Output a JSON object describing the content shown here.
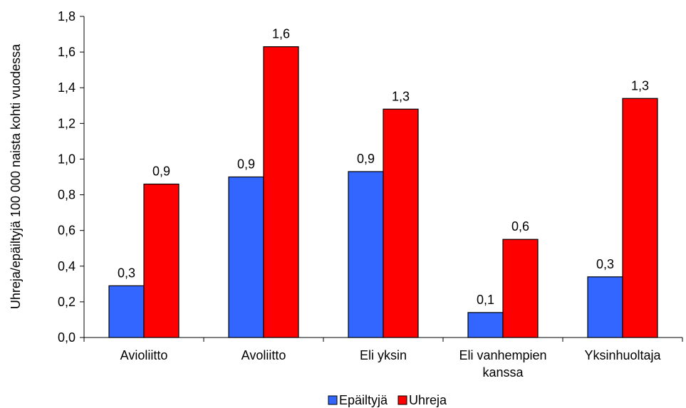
{
  "chart_data": {
    "type": "bar",
    "title": "",
    "xlabel": "",
    "ylabel": "Uhreja/epäiltyjä 100 000 naista kohti vuodessa",
    "ylim": [
      0,
      1.8
    ],
    "ytick_step": 0.2,
    "ytick_labels": [
      "0,0",
      "0,2",
      "0,4",
      "0,6",
      "0,8",
      "1,0",
      "1,2",
      "1,4",
      "1,6",
      "1,8"
    ],
    "grid": false,
    "legend_position": "bottom",
    "categories": [
      [
        "Avioliitto"
      ],
      [
        "Avoliitto"
      ],
      [
        "Eli yksin"
      ],
      [
        "Eli vanhempien",
        "kanssa"
      ],
      [
        "Yksinhuoltaja"
      ]
    ],
    "series": [
      {
        "name": "Epäiltyjä",
        "color": "#3366ff",
        "values": [
          0.29,
          0.9,
          0.93,
          0.14,
          0.34
        ],
        "labels": [
          "0,3",
          "0,9",
          "0,9",
          "0,1",
          "0,3"
        ]
      },
      {
        "name": "Uhreja",
        "color": "#ff0000",
        "values": [
          0.86,
          1.63,
          1.28,
          0.55,
          1.34
        ],
        "labels": [
          "0,9",
          "1,6",
          "1,3",
          "0,6",
          "1,3"
        ]
      }
    ]
  }
}
